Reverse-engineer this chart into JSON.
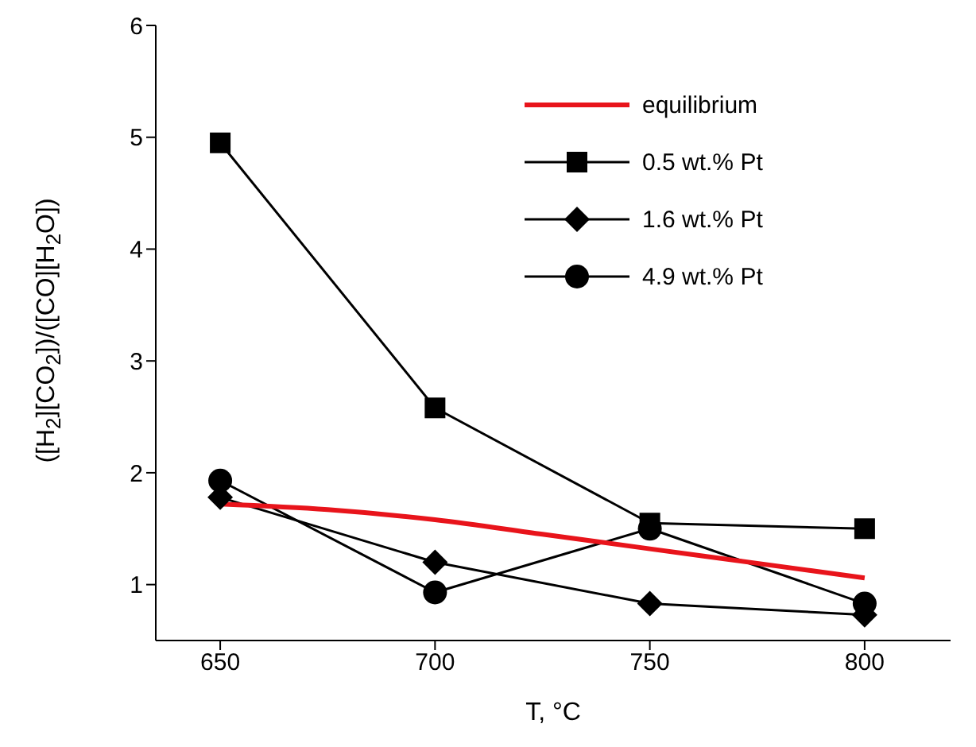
{
  "chart_data": {
    "type": "line",
    "xlabel": "T, °C",
    "ylabel": "([H$_{2}$][CO$_{2}$])/([CO][H$_{2}$O])",
    "x": [
      650,
      700,
      750,
      800
    ],
    "xlim": [
      635,
      820
    ],
    "xticks": [
      650,
      700,
      750,
      800
    ],
    "ylim": [
      0.5,
      6
    ],
    "yticks": [
      1,
      2,
      3,
      4,
      5,
      6
    ],
    "grid": false,
    "legend": "top right",
    "line_style": "solid",
    "series": [
      {
        "name": "equilibrium",
        "color": "#e8141b",
        "marker": "none",
        "x": [
          650,
          675,
          700,
          725,
          750,
          775,
          800
        ],
        "values": [
          1.72,
          1.67,
          1.58,
          1.45,
          1.32,
          1.19,
          1.06
        ]
      },
      {
        "name": "0.5 wt.% Pt",
        "color": "#000000",
        "marker": "square",
        "values": [
          4.95,
          2.58,
          1.55,
          1.5
        ]
      },
      {
        "name": "1.6 wt.% Pt",
        "color": "#000000",
        "marker": "diamond",
        "values": [
          1.78,
          1.2,
          0.83,
          0.73
        ]
      },
      {
        "name": "4.9 wt.% Pt",
        "color": "#000000",
        "marker": "circle",
        "values": [
          1.93,
          0.93,
          1.5,
          0.83
        ]
      }
    ]
  }
}
